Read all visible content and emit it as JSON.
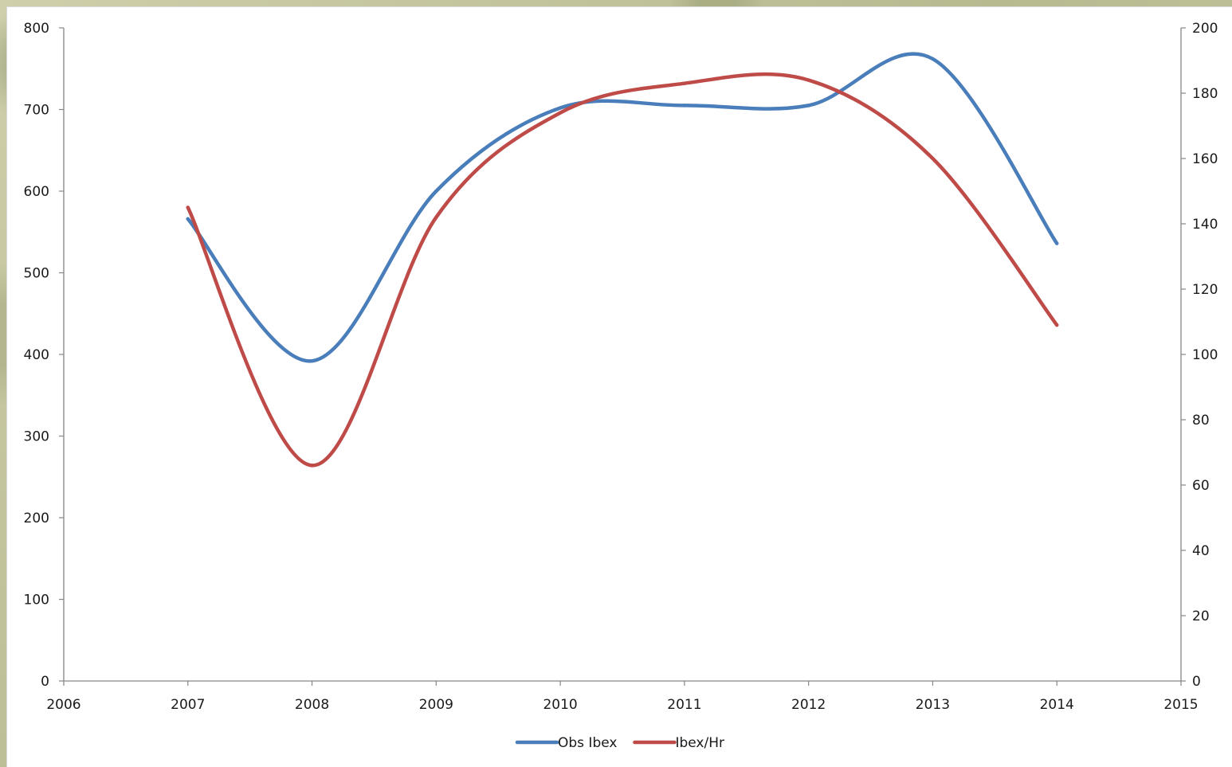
{
  "chart_data": {
    "type": "line",
    "smooth": true,
    "title": "",
    "xlabel": "",
    "ylabel_left": "",
    "ylabel_right": "",
    "xlim": [
      2006,
      2015
    ],
    "ylim_left": [
      0,
      800
    ],
    "ylim_right": [
      0,
      200
    ],
    "x_ticks": [
      "2006",
      "2007",
      "2008",
      "2009",
      "2010",
      "2011",
      "2012",
      "2013",
      "2014",
      "2015"
    ],
    "y_left_ticks": [
      "0",
      "100",
      "200",
      "300",
      "400",
      "500",
      "600",
      "700",
      "800"
    ],
    "y_right_ticks": [
      "0",
      "20",
      "40",
      "60",
      "80",
      "100",
      "120",
      "140",
      "160",
      "180",
      "200"
    ],
    "grid": false,
    "legend_position": "bottom",
    "x": [
      2007,
      2008,
      2009,
      2010,
      2011,
      2012,
      2013,
      2014
    ],
    "series": [
      {
        "name": "Obs Ibex",
        "axis": "left",
        "color": "#4a7ebb",
        "values": [
          566,
          392,
          600,
          702,
          705,
          705,
          762,
          536
        ]
      },
      {
        "name": "Ibex/Hr",
        "axis": "right",
        "color": "#be4b48",
        "values": [
          145,
          66,
          142,
          174,
          183,
          184,
          160,
          109
        ]
      }
    ]
  }
}
